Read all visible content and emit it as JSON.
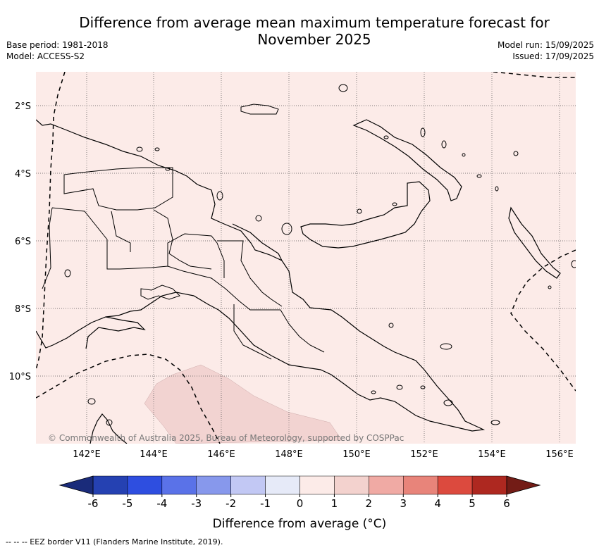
{
  "title": "Difference from average mean maximum temperature forecast for November 2025",
  "meta_left": {
    "base_period": "Base period: 1981-2018",
    "model": "Model: ACCESS-S2"
  },
  "meta_right": {
    "model_run": "Model run: 15/09/2025",
    "issued": "Issued: 17/09/2025"
  },
  "map": {
    "lat_labels": [
      "2°S",
      "4°S",
      "6°S",
      "8°S",
      "10°S"
    ],
    "lon_labels": [
      "142°E",
      "144°E",
      "146°E",
      "148°E",
      "150°E",
      "152°E",
      "154°E",
      "156°E"
    ],
    "copyright": "© Commonwealth of Australia 2025, Bureau of Meteorology, supported by COSPPac",
    "background_color": "#fcebe8",
    "anomaly_patch_color": "#f2d3d1"
  },
  "colorbar": {
    "ticks": [
      "-6",
      "-5",
      "-4",
      "-3",
      "-2",
      "-1",
      "0",
      "1",
      "2",
      "3",
      "4",
      "5",
      "6"
    ],
    "colors": [
      "#2541b2",
      "#2e4ee0",
      "#5a72e8",
      "#8798ec",
      "#c2c8f4",
      "#e6eaf8",
      "#fcebe8",
      "#f3d2ce",
      "#f0aaa4",
      "#e8847a",
      "#dc4a3e",
      "#ae2820"
    ],
    "under_color": "#1a2b7a",
    "over_color": "#731c16",
    "label": "Difference from average (°C)"
  },
  "footnote": "-- -- -- EEZ border V11 (Flanders Marine Institute, 2019)."
}
